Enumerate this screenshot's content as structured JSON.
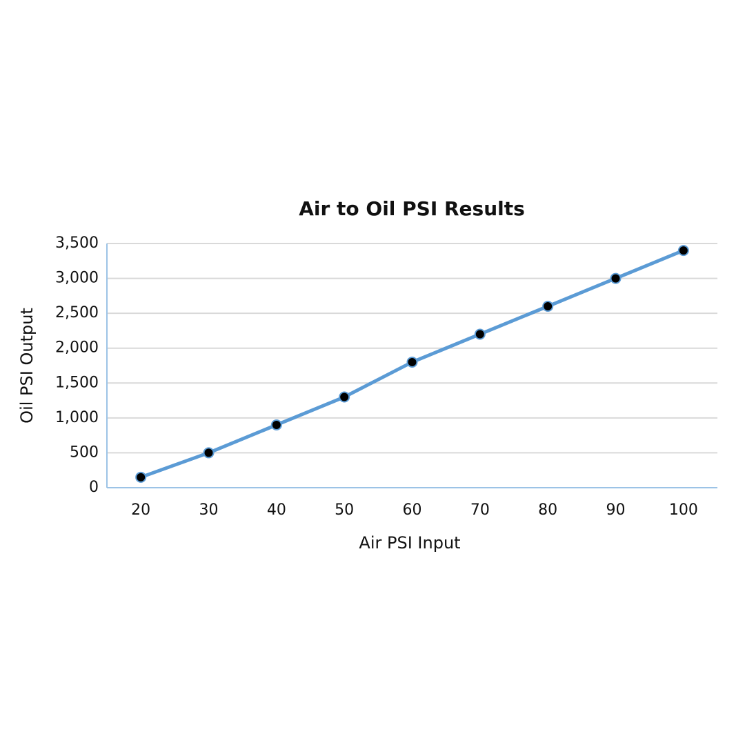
{
  "chart_data": {
    "type": "line",
    "title": "Air to Oil PSI Results",
    "x_label": "Air PSI Input",
    "y_label": "Oil PSI Output",
    "categories": [
      "20",
      "30",
      "40",
      "50",
      "60",
      "70",
      "80",
      "90",
      "100"
    ],
    "values": [
      150,
      500,
      900,
      1300,
      1800,
      2200,
      2600,
      3000,
      3400
    ],
    "color": "#5b9bd5",
    "marker_color": "#000000",
    "ylim": [
      0,
      3500
    ],
    "yticks": [
      0,
      500,
      {
        "value": 1000,
        "label": "1,000"
      },
      {
        "value": 1500,
        "label": "1,500"
      },
      {
        "value": 2000,
        "label": "2,000"
      },
      {
        "value": 2500,
        "label": "2,500"
      },
      {
        "value": 3000,
        "label": "3,000"
      },
      {
        "value": 3500,
        "label": "3,500"
      }
    ],
    "grid": true
  }
}
